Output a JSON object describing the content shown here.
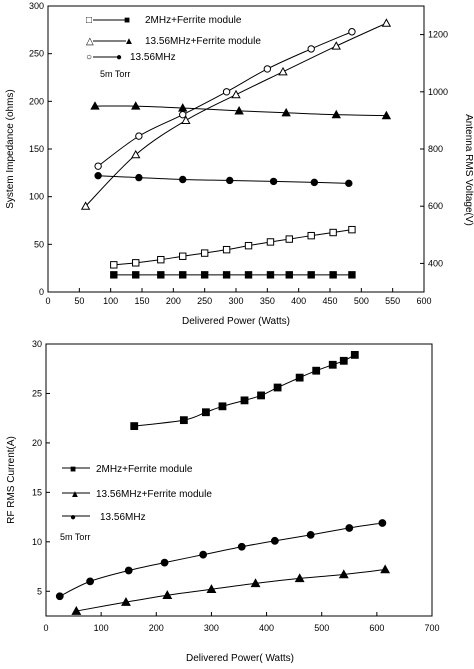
{
  "chart_data": [
    {
      "type": "line",
      "xlabel": "Delivered Power (Watts)",
      "ylabel": "System Impedance (ohms)",
      "y2label": "Antenna RMS Voltage(V)",
      "xlim": [
        0,
        600
      ],
      "ylim": [
        0,
        300
      ],
      "y2lim": [
        300,
        1300
      ],
      "xticks": [
        0,
        50,
        100,
        150,
        200,
        250,
        300,
        350,
        400,
        450,
        500,
        550,
        600
      ],
      "yticks": [
        0,
        50,
        100,
        150,
        200,
        250,
        300
      ],
      "y2ticks": [
        400,
        600,
        800,
        1000,
        1200
      ],
      "annotation": "5m Torr",
      "legend": [
        {
          "open": "□",
          "filled": "■",
          "label": "2MHz+Ferrite module"
        },
        {
          "open": "△",
          "filled": "▲",
          "label": "13.56MHz+Ferrite module"
        },
        {
          "open": "○",
          "filled": "●",
          "label": "13.56MHz"
        }
      ],
      "series": [
        {
          "marker": "square",
          "fill": "filled",
          "axis": "left",
          "x": [
            105,
            140,
            180,
            215,
            250,
            285,
            320,
            355,
            385,
            420,
            455,
            485
          ],
          "y": [
            18,
            18,
            18,
            18,
            18,
            18,
            18,
            18,
            18,
            18,
            18,
            18
          ]
        },
        {
          "marker": "square",
          "fill": "open",
          "axis": "right",
          "x": [
            105,
            140,
            180,
            215,
            250,
            285,
            320,
            355,
            385,
            420,
            455,
            485
          ],
          "y": [
            395,
            402,
            413,
            425,
            436,
            448,
            462,
            475,
            485,
            497,
            508,
            518
          ]
        },
        {
          "marker": "triangle",
          "fill": "filled",
          "axis": "left",
          "x": [
            75,
            140,
            215,
            305,
            380,
            460,
            540
          ],
          "y": [
            195,
            195,
            193,
            190,
            188,
            186,
            185
          ]
        },
        {
          "marker": "triangle",
          "fill": "open",
          "axis": "right",
          "x": [
            60,
            140,
            220,
            300,
            375,
            460,
            540
          ],
          "y": [
            600,
            780,
            900,
            990,
            1070,
            1160,
            1240
          ]
        },
        {
          "marker": "circle",
          "fill": "filled",
          "axis": "left",
          "x": [
            80,
            145,
            215,
            290,
            360,
            425,
            480
          ],
          "y": [
            122,
            120,
            118,
            117,
            116,
            115,
            114
          ]
        },
        {
          "marker": "circle",
          "fill": "open",
          "axis": "right",
          "x": [
            80,
            145,
            215,
            285,
            350,
            420,
            485
          ],
          "y": [
            740,
            845,
            920,
            1000,
            1080,
            1150,
            1210
          ]
        }
      ]
    },
    {
      "type": "line",
      "xlabel": "Delivered Power( Watts)",
      "ylabel": "RF RMS Current(A)",
      "xlim": [
        0,
        700
      ],
      "ylim": [
        2.5,
        30
      ],
      "xticks": [
        0,
        100,
        200,
        300,
        400,
        500,
        600,
        700
      ],
      "yticks": [
        5,
        10,
        15,
        20,
        25,
        30
      ],
      "annotation": "5m Torr",
      "legend": [
        {
          "marker": "■",
          "label": "2MHz+Ferrite module"
        },
        {
          "marker": "▲",
          "label": "13.56MHz+Ferrite module"
        },
        {
          "marker": "●",
          "label": "13.56MHz"
        }
      ],
      "series": [
        {
          "marker": "square",
          "x": [
            160,
            250,
            290,
            320,
            360,
            390,
            420,
            460,
            490,
            520,
            540,
            560
          ],
          "y": [
            21.7,
            22.3,
            23.1,
            23.7,
            24.3,
            24.8,
            25.6,
            26.6,
            27.3,
            27.9,
            28.3,
            28.9
          ]
        },
        {
          "marker": "triangle",
          "x": [
            55,
            145,
            220,
            300,
            380,
            460,
            540,
            615
          ],
          "y": [
            3.0,
            3.9,
            4.6,
            5.2,
            5.8,
            6.3,
            6.7,
            7.2
          ]
        },
        {
          "marker": "circle",
          "x": [
            25,
            80,
            150,
            215,
            285,
            355,
            415,
            480,
            550,
            610
          ],
          "y": [
            4.5,
            6.0,
            7.1,
            7.9,
            8.7,
            9.5,
            10.1,
            10.7,
            11.4,
            11.9
          ]
        }
      ]
    }
  ]
}
